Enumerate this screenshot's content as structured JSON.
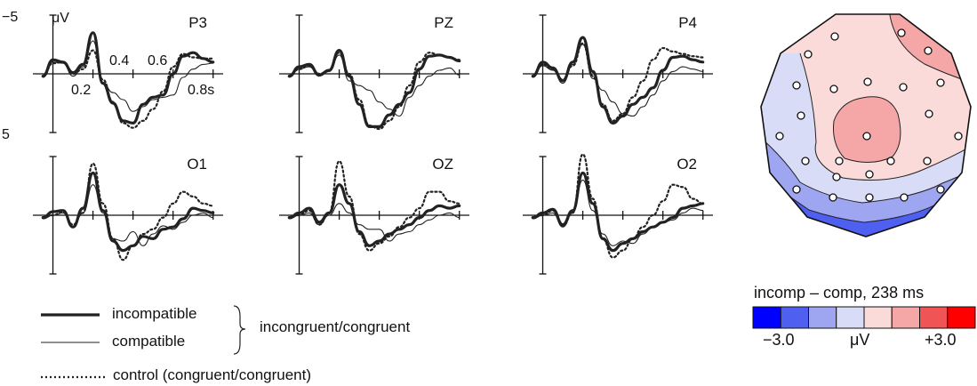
{
  "chart_data": {
    "type": "line",
    "panels": [
      {
        "name": "P3",
        "series": [
          {
            "x": [
              -0.05,
              0,
              0.05,
              0.1,
              0.15,
              0.2,
              0.25,
              0.3,
              0.35,
              0.4,
              0.45,
              0.5,
              0.55,
              0.6,
              0.65,
              0.7,
              0.75,
              0.8
            ],
            "y": [
              0.2,
              -1.2,
              -1.0,
              -0.1,
              -0.8,
              -3.5,
              0.8,
              2.5,
              4.0,
              4.2,
              2.6,
              2.0,
              1.8,
              0.0,
              -1.5,
              -1.8,
              -1.3,
              -1.0
            ]
          },
          {
            "x": [
              -0.05,
              0,
              0.05,
              0.1,
              0.15,
              0.2,
              0.25,
              0.3,
              0.35,
              0.4,
              0.45,
              0.5,
              0.55,
              0.6,
              0.65,
              0.7,
              0.75,
              0.8
            ],
            "y": [
              0.3,
              -1.0,
              -0.9,
              0.2,
              -0.6,
              -2.8,
              0.8,
              1.6,
              2.2,
              3.2,
              2.8,
              2.2,
              2.0,
              1.8,
              0.3,
              -0.4,
              -0.8,
              -0.9
            ]
          },
          {
            "x": [
              -0.05,
              0,
              0.05,
              0.1,
              0.15,
              0.2,
              0.25,
              0.3,
              0.35,
              0.4,
              0.45,
              0.5,
              0.55,
              0.6,
              0.65,
              0.7,
              0.75,
              0.8
            ],
            "y": [
              0.2,
              -0.9,
              -1.0,
              0.0,
              -0.4,
              -2.0,
              0.5,
              2.4,
              4.2,
              4.6,
              4.0,
              3.0,
              1.5,
              -0.6,
              -1.7,
              -1.4,
              -1.3,
              -1.3
            ]
          }
        ]
      },
      {
        "name": "PZ",
        "series": [
          {
            "x": [
              -0.05,
              0,
              0.05,
              0.1,
              0.15,
              0.2,
              0.25,
              0.3,
              0.35,
              0.4,
              0.45,
              0.5,
              0.55,
              0.6,
              0.65,
              0.7,
              0.75,
              0.8
            ],
            "y": [
              0.2,
              -0.6,
              -0.8,
              0.1,
              -0.3,
              -2.0,
              0.2,
              2.6,
              4.5,
              4.5,
              3.5,
              2.6,
              1.6,
              -0.4,
              -1.5,
              -1.6,
              -1.4,
              -1.1
            ]
          },
          {
            "x": [
              -0.05,
              0,
              0.05,
              0.1,
              0.15,
              0.2,
              0.25,
              0.3,
              0.35,
              0.4,
              0.45,
              0.5,
              0.55,
              0.6,
              0.65,
              0.7,
              0.75,
              0.8
            ],
            "y": [
              0.3,
              -0.4,
              -0.6,
              0.2,
              -0.2,
              -1.6,
              0.6,
              1.0,
              1.4,
              2.4,
              3.0,
              3.6,
              2.0,
              1.0,
              0.2,
              -0.3,
              -0.5,
              0.1
            ]
          },
          {
            "x": [
              -0.05,
              0,
              0.05,
              0.1,
              0.15,
              0.2,
              0.25,
              0.3,
              0.35,
              0.4,
              0.45,
              0.5,
              0.55,
              0.6,
              0.65,
              0.7,
              0.75,
              0.8
            ],
            "y": [
              0.2,
              -0.4,
              -0.7,
              0.0,
              -0.3,
              -1.8,
              0.0,
              2.2,
              4.4,
              4.7,
              4.0,
              2.8,
              1.0,
              -1.0,
              -1.8,
              -1.6,
              -1.4,
              -1.2
            ]
          }
        ]
      },
      {
        "name": "P4",
        "series": [
          {
            "x": [
              -0.05,
              0,
              0.05,
              0.1,
              0.15,
              0.2,
              0.25,
              0.3,
              0.35,
              0.4,
              0.45,
              0.5,
              0.55,
              0.6,
              0.65,
              0.7,
              0.75,
              0.8
            ],
            "y": [
              0.2,
              -1.0,
              -0.5,
              0.6,
              -1.0,
              -3.1,
              -0.2,
              2.8,
              4.2,
              3.6,
              2.6,
              2.0,
              1.2,
              -0.3,
              -1.4,
              -1.5,
              -1.2,
              -1.0
            ]
          },
          {
            "x": [
              -0.05,
              0,
              0.05,
              0.1,
              0.15,
              0.2,
              0.25,
              0.3,
              0.35,
              0.4,
              0.45,
              0.5,
              0.55,
              0.6,
              0.65,
              0.7,
              0.75,
              0.8
            ],
            "y": [
              0.3,
              -0.7,
              -0.3,
              0.8,
              -0.8,
              -2.5,
              0.4,
              1.4,
              2.4,
              3.4,
              3.6,
              2.8,
              1.8,
              0.6,
              -0.2,
              -0.6,
              -0.4,
              -0.2
            ]
          },
          {
            "x": [
              -0.05,
              0,
              0.05,
              0.1,
              0.15,
              0.2,
              0.25,
              0.3,
              0.35,
              0.4,
              0.45,
              0.5,
              0.55,
              0.6,
              0.65,
              0.7,
              0.75,
              0.8
            ],
            "y": [
              0.2,
              -0.8,
              -0.4,
              0.5,
              -0.7,
              -2.6,
              0.2,
              2.6,
              4.0,
              3.4,
              2.0,
              0.6,
              -1.2,
              -2.2,
              -1.9,
              -1.7,
              -1.5,
              -1.4
            ]
          }
        ]
      },
      {
        "name": "O1",
        "series": [
          {
            "x": [
              -0.05,
              0,
              0.05,
              0.1,
              0.15,
              0.2,
              0.25,
              0.3,
              0.35,
              0.4,
              0.45,
              0.5,
              0.55,
              0.6,
              0.65,
              0.7,
              0.75,
              0.8
            ],
            "y": [
              0.2,
              -0.3,
              -0.4,
              1.0,
              -0.6,
              -3.6,
              -0.4,
              2.2,
              3.0,
              2.6,
              1.8,
              2.0,
              1.2,
              1.0,
              0.3,
              -0.6,
              -0.4,
              -0.2
            ]
          },
          {
            "x": [
              -0.05,
              0,
              0.05,
              0.1,
              0.15,
              0.2,
              0.25,
              0.3,
              0.35,
              0.4,
              0.45,
              0.5,
              0.55,
              0.6,
              0.65,
              0.7,
              0.75,
              0.8
            ],
            "y": [
              0.3,
              0.0,
              -0.2,
              1.0,
              -0.2,
              -2.6,
              -0.2,
              2.0,
              2.2,
              1.4,
              2.6,
              1.6,
              0.9,
              1.2,
              0.6,
              0.0,
              -0.2,
              0.2
            ]
          },
          {
            "x": [
              -0.05,
              0,
              0.05,
              0.1,
              0.15,
              0.2,
              0.25,
              0.3,
              0.35,
              0.4,
              0.45,
              0.5,
              0.55,
              0.6,
              0.65,
              0.7,
              0.75,
              0.8
            ],
            "y": [
              0.2,
              0.0,
              -0.3,
              0.8,
              -0.2,
              -4.4,
              -1.0,
              2.0,
              3.8,
              2.6,
              1.6,
              1.2,
              0.2,
              -1.0,
              -2.0,
              -1.6,
              -1.0,
              -0.8
            ]
          }
        ]
      },
      {
        "name": "OZ",
        "series": [
          {
            "x": [
              -0.05,
              0,
              0.05,
              0.1,
              0.15,
              0.2,
              0.25,
              0.3,
              0.35,
              0.4,
              0.45,
              0.5,
              0.55,
              0.6,
              0.65,
              0.7,
              0.75,
              0.8
            ],
            "y": [
              0.2,
              -0.2,
              -0.6,
              0.6,
              -0.2,
              -2.6,
              -1.0,
              1.4,
              2.6,
              2.2,
              1.6,
              1.2,
              0.8,
              0.2,
              -0.4,
              -0.8,
              -0.6,
              -0.8
            ]
          },
          {
            "x": [
              -0.05,
              0,
              0.05,
              0.1,
              0.15,
              0.2,
              0.25,
              0.3,
              0.35,
              0.4,
              0.45,
              0.5,
              0.55,
              0.6,
              0.65,
              0.7,
              0.75,
              0.8
            ],
            "y": [
              0.3,
              0.0,
              -0.2,
              0.8,
              0.0,
              -1.0,
              -0.2,
              0.8,
              1.2,
              1.2,
              2.2,
              1.6,
              1.4,
              0.8,
              0.4,
              0.0,
              -0.2,
              0.2
            ]
          },
          {
            "x": [
              -0.05,
              0,
              0.05,
              0.1,
              0.15,
              0.2,
              0.25,
              0.3,
              0.35,
              0.4,
              0.45,
              0.5,
              0.55,
              0.6,
              0.65,
              0.7,
              0.75,
              0.8
            ],
            "y": [
              0.2,
              0.0,
              -0.4,
              0.8,
              -0.2,
              -4.6,
              -1.6,
              1.6,
              3.0,
              2.4,
              1.8,
              1.0,
              0.2,
              -0.6,
              -2.0,
              -2.0,
              -1.2,
              -1.0
            ]
          }
        ]
      },
      {
        "name": "O2",
        "series": [
          {
            "x": [
              -0.05,
              0,
              0.05,
              0.1,
              0.15,
              0.2,
              0.25,
              0.3,
              0.35,
              0.4,
              0.45,
              0.5,
              0.55,
              0.6,
              0.65,
              0.7,
              0.75,
              0.8
            ],
            "y": [
              0.2,
              -0.2,
              -0.5,
              0.8,
              -0.4,
              -3.6,
              -1.0,
              2.0,
              3.0,
              2.4,
              2.0,
              1.4,
              1.0,
              0.6,
              0.2,
              -0.6,
              -0.8,
              -1.0
            ]
          },
          {
            "x": [
              -0.05,
              0,
              0.05,
              0.1,
              0.15,
              0.2,
              0.25,
              0.3,
              0.35,
              0.4,
              0.45,
              0.5,
              0.55,
              0.6,
              0.65,
              0.7,
              0.75,
              0.8
            ],
            "y": [
              0.3,
              0.0,
              -0.2,
              1.0,
              -0.2,
              -3.0,
              -0.4,
              1.6,
              2.6,
              2.2,
              2.4,
              1.6,
              1.0,
              0.6,
              0.4,
              -0.2,
              -0.6,
              -0.4
            ]
          },
          {
            "x": [
              -0.05,
              0,
              0.05,
              0.1,
              0.15,
              0.2,
              0.25,
              0.3,
              0.35,
              0.4,
              0.45,
              0.5,
              0.55,
              0.6,
              0.65,
              0.7,
              0.75,
              0.8
            ],
            "y": [
              0.2,
              0.0,
              -0.4,
              0.9,
              -0.2,
              -5.2,
              -1.4,
              2.0,
              3.6,
              3.0,
              2.0,
              1.0,
              0.0,
              -1.2,
              -2.6,
              -2.4,
              -1.4,
              -1.0
            ]
          }
        ]
      }
    ],
    "series_styles": [
      {
        "key": "incompatible",
        "stroke": "#222222",
        "width": 3.2,
        "dash": ""
      },
      {
        "key": "compatible",
        "stroke": "#222222",
        "width": 1.1,
        "dash": ""
      },
      {
        "key": "control",
        "stroke": "#222222",
        "width": 2.2,
        "dash": "2,3"
      }
    ],
    "x_range": [
      -0.1,
      0.85
    ],
    "y_range": [
      -5,
      5
    ],
    "y_axis_inverted": true,
    "y_unit": "μV",
    "y_tick_labels": [
      "−5",
      "5"
    ],
    "x_tick_labels": [
      "0.2",
      "0.4",
      "0.6",
      "0.8s"
    ],
    "x_tick_values": [
      0.2,
      0.4,
      0.6,
      0.8
    ],
    "legend": {
      "incompatible": "incompatible",
      "compatible": "compatible",
      "bracket_label": "incongruent/congruent",
      "control": "control (congruent/congruent)"
    },
    "topomap": {
      "title": "incomp – comp, 238 ms",
      "unit": "μV",
      "min_label": "−3.0",
      "max_label": "+3.0",
      "range": [
        -3.0,
        3.0
      ],
      "color_steps": [
        "#0000ff",
        "#4f5ff0",
        "#9ea6f2",
        "#d9dcf6",
        "#fbdada",
        "#f5a7a7",
        "#f05454",
        "#ff0000"
      ]
    }
  }
}
